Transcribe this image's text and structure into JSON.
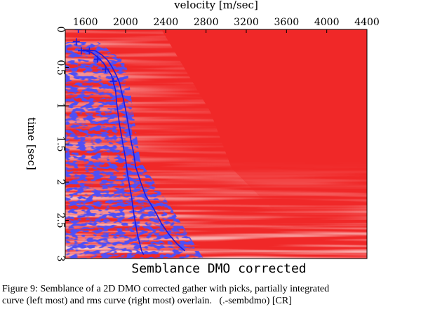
{
  "chart_data": {
    "type": "heatmap",
    "title": "Semblance DMO corrected",
    "xlabel": "velocity [m/sec]",
    "ylabel": "time [sec]",
    "x_axis_position": "top",
    "xlim": [
      1400,
      4400
    ],
    "ylim": [
      0,
      3
    ],
    "x_ticks": [
      1600,
      2000,
      2400,
      2800,
      3200,
      3600,
      4000,
      4400
    ],
    "y_ticks": [
      0,
      0.5,
      1,
      1.5,
      2,
      2.5,
      3
    ],
    "y_tick_labels": [
      "0",
      "0.5",
      "1",
      "1.5",
      "2",
      "2.5",
      "3"
    ],
    "grid": false,
    "colormap": {
      "background": "#f02828",
      "low": "#ffffff",
      "high": "#1414e6"
    },
    "curve_color": "#1a1ae0",
    "series": [
      {
        "kind": "curve",
        "x": [
          1560,
          1580,
          1620,
          1700,
          1760,
          1820,
          1860,
          1900,
          1940,
          1960,
          1980,
          2000,
          2020,
          2040,
          2060,
          2080,
          2100,
          2150,
          2200,
          2280,
          2360,
          2440,
          2520,
          2590
        ],
        "y": [
          0.28,
          0.27,
          0.27,
          0.28,
          0.33,
          0.4,
          0.48,
          0.58,
          0.7,
          0.82,
          0.92,
          1.05,
          1.2,
          1.35,
          1.5,
          1.62,
          1.8,
          2.0,
          2.18,
          2.35,
          2.55,
          2.7,
          2.82,
          2.9
        ]
      },
      {
        "kind": "curve",
        "x": [
          1560,
          1600,
          1660,
          1720,
          1780,
          1820,
          1860,
          1880,
          1900,
          1910,
          1920,
          1940,
          1960,
          1980,
          2000,
          2020,
          2040,
          2060,
          2080,
          2100,
          2120,
          2140,
          2160,
          2180
        ],
        "y": [
          0.28,
          0.28,
          0.3,
          0.36,
          0.44,
          0.52,
          0.6,
          0.7,
          0.8,
          0.95,
          1.05,
          1.25,
          1.4,
          1.55,
          1.7,
          1.9,
          2.05,
          2.2,
          2.4,
          2.55,
          2.7,
          2.8,
          2.9,
          2.95
        ]
      },
      {
        "kind": "picks",
        "x": [
          1530,
          1510,
          1560,
          1640,
          1720,
          1800,
          1880
        ],
        "y": [
          0.0,
          0.16,
          0.28,
          0.28,
          0.39,
          0.52,
          0.68
        ]
      }
    ]
  },
  "caption": {
    "line1": "Figure 9: Semblance of a 2D DMO corrected gather with picks, partially integrated",
    "line2": "curve (left most) and rms curve (right most) overlain.   (.-sembdmo) [CR]"
  }
}
